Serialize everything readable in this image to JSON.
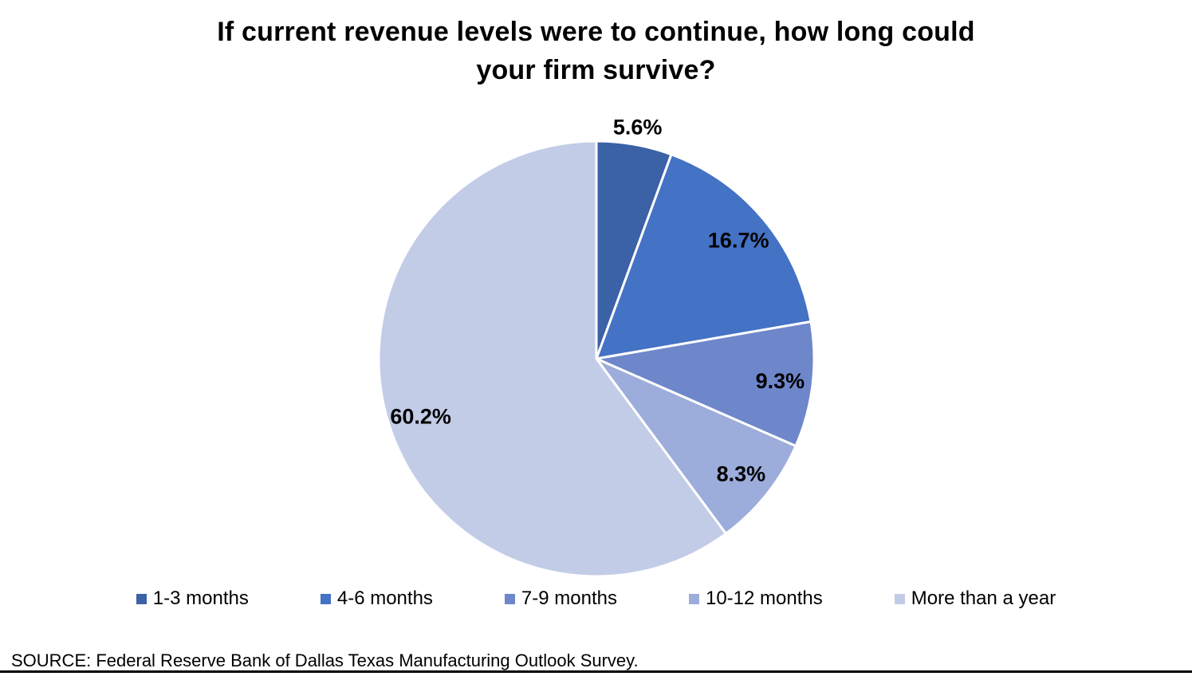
{
  "title": {
    "lines": [
      "If current revenue levels were to continue, how long could",
      "your firm survive?"
    ]
  },
  "chart_data": {
    "type": "pie",
    "title": "If current revenue levels were to continue, how long could your firm survive?",
    "categories": [
      "1-3 months",
      "4-6 months",
      "7-9 months",
      "10-12 months",
      "More than a year"
    ],
    "values": [
      5.6,
      16.7,
      9.3,
      8.3,
      60.2
    ],
    "labels": [
      "5.6%",
      "16.7%",
      "9.3%",
      "8.3%",
      "60.2%"
    ],
    "colors": [
      "#3B61A6",
      "#4472C4",
      "#6E87CB",
      "#9CACDB",
      "#C3CCE7"
    ],
    "start_angle_deg": 0,
    "direction": "clockwise",
    "slice_border_color": "#ffffff",
    "label_color": "#000000",
    "legend_position": "bottom"
  },
  "source": {
    "text": "SOURCE: Federal Reserve Bank of Dallas Texas Manufacturing Outlook Survey."
  }
}
